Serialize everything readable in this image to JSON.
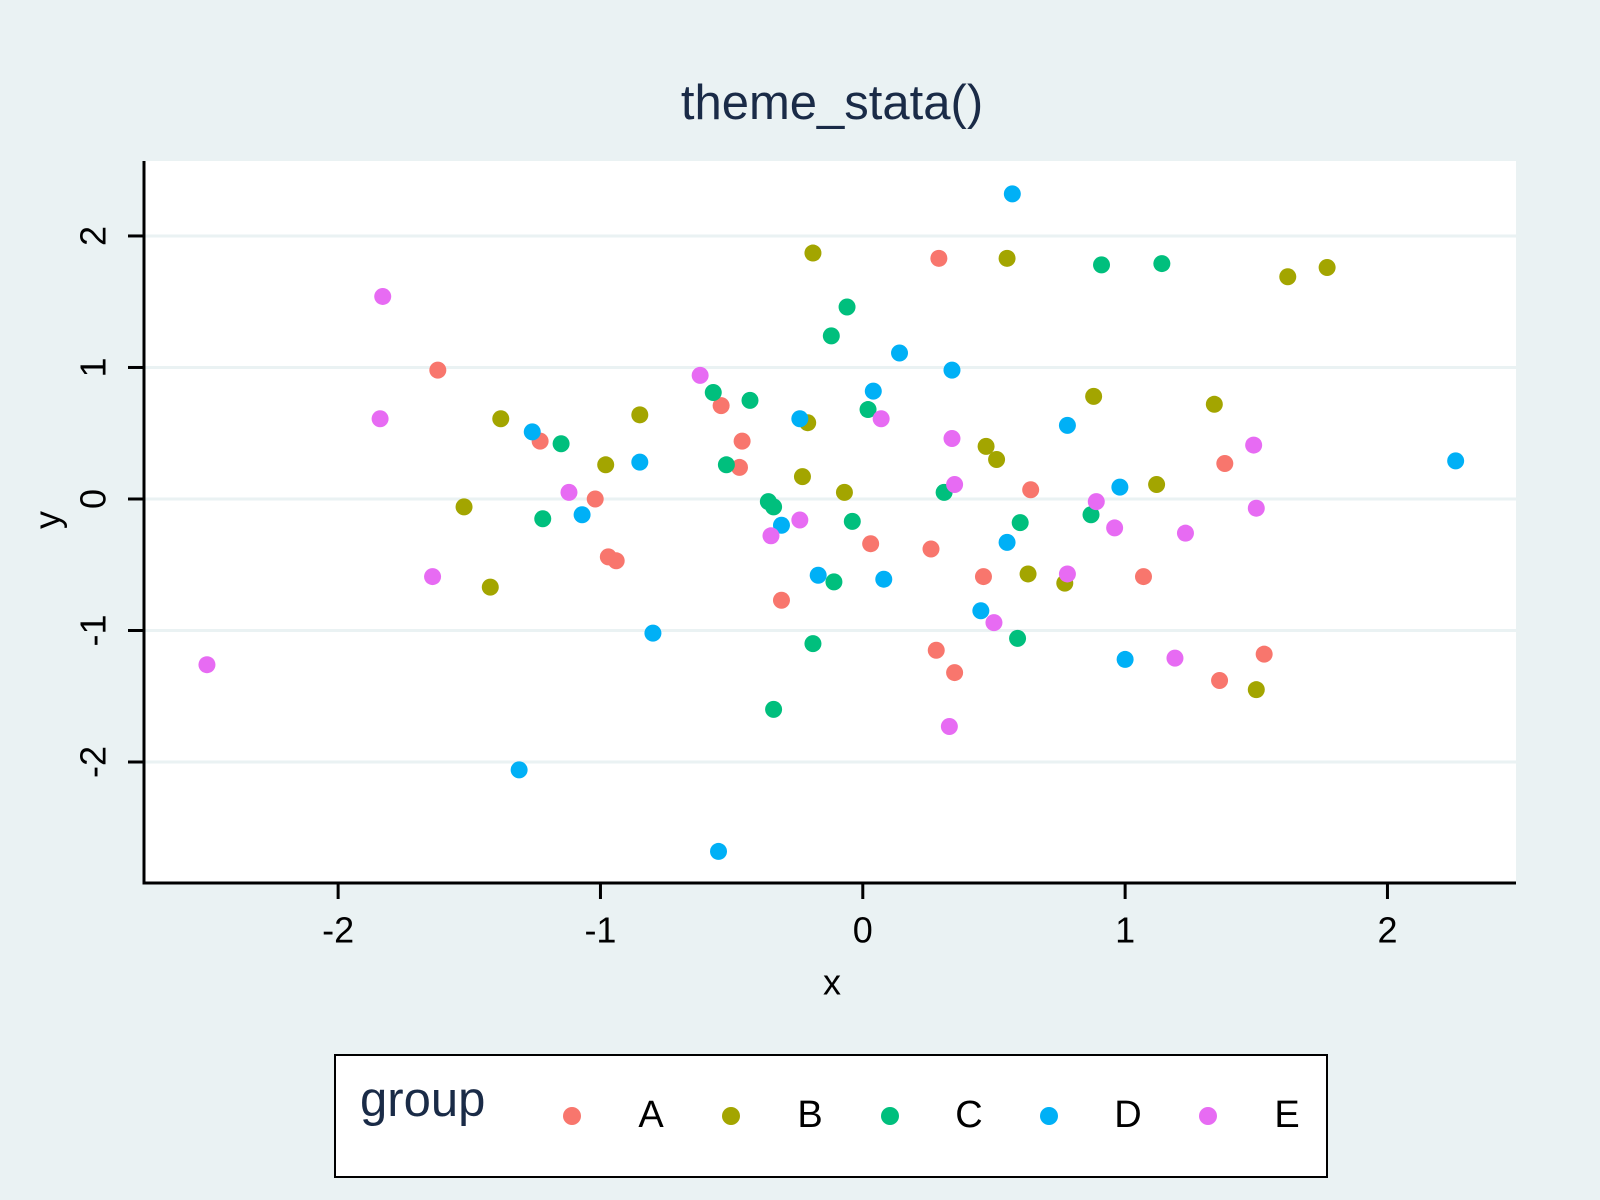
{
  "chart_data": {
    "type": "scatter",
    "title": "theme_stata()",
    "x_label": "x",
    "y_label": "y",
    "legend_title": "group",
    "legend_position": "bottom",
    "grid": true,
    "xlim": [
      -2.74,
      2.49
    ],
    "ylim": [
      -2.92,
      2.57
    ],
    "xticks": [
      -2,
      -1,
      0,
      1,
      2
    ],
    "yticks": [
      -2,
      -1,
      0,
      1,
      2
    ],
    "series": [
      {
        "name": "A",
        "color": "#F8766D",
        "x": [
          0.29,
          -1.62,
          -0.54,
          -0.46,
          -1.23,
          -0.47,
          1.38,
          0.64,
          -1.02,
          -0.97,
          -0.94,
          0.03,
          0.26,
          0.46,
          1.07,
          -0.31,
          0.28,
          0.35,
          1.53,
          1.36
        ],
        "values": [
          1.83,
          0.98,
          0.71,
          0.44,
          0.44,
          0.24,
          0.27,
          0.07,
          0.0,
          -0.44,
          -0.47,
          -0.34,
          -0.38,
          -0.59,
          -0.59,
          -0.77,
          -1.15,
          -1.32,
          -1.18,
          -1.38
        ]
      },
      {
        "name": "B",
        "color": "#A3A500",
        "x": [
          -0.19,
          0.55,
          1.62,
          1.77,
          -1.38,
          -0.85,
          0.88,
          1.34,
          -0.21,
          0.47,
          0.51,
          -0.98,
          -0.23,
          1.12,
          -0.07,
          -1.52,
          0.63,
          0.77,
          -1.42,
          1.5
        ],
        "values": [
          1.87,
          1.83,
          1.69,
          1.76,
          0.61,
          0.64,
          0.78,
          0.72,
          0.58,
          0.4,
          0.3,
          0.26,
          0.17,
          0.11,
          0.05,
          -0.06,
          -0.57,
          -0.64,
          -0.67,
          -1.45
        ]
      },
      {
        "name": "C",
        "color": "#00BF7D",
        "x": [
          0.91,
          1.14,
          -0.06,
          -0.12,
          -0.57,
          -0.43,
          0.02,
          -1.15,
          -0.52,
          0.31,
          -0.36,
          -0.34,
          -1.22,
          -0.04,
          0.6,
          0.87,
          -0.11,
          -0.19,
          0.59,
          -0.34
        ],
        "values": [
          1.78,
          1.79,
          1.46,
          1.24,
          0.81,
          0.75,
          0.68,
          0.42,
          0.26,
          0.05,
          -0.02,
          -0.06,
          -0.15,
          -0.17,
          -0.18,
          -0.12,
          -0.63,
          -1.1,
          -1.06,
          -1.6
        ]
      },
      {
        "name": "D",
        "color": "#00B0F6",
        "x": [
          0.57,
          0.14,
          0.34,
          0.04,
          -0.24,
          0.78,
          -1.26,
          -0.85,
          2.26,
          0.98,
          -1.07,
          -0.31,
          0.55,
          -0.17,
          0.08,
          0.45,
          -0.8,
          1.0,
          -1.31,
          -0.55
        ],
        "values": [
          2.32,
          1.11,
          0.98,
          0.82,
          0.61,
          0.56,
          0.51,
          0.28,
          0.29,
          0.09,
          -0.12,
          -0.2,
          -0.33,
          -0.58,
          -0.61,
          -0.85,
          -1.02,
          -1.22,
          -2.06,
          -2.68
        ]
      },
      {
        "name": "E",
        "color": "#E76BF3",
        "x": [
          -1.83,
          -0.62,
          -1.84,
          0.07,
          0.34,
          1.49,
          0.35,
          -1.12,
          0.89,
          -0.24,
          1.5,
          0.96,
          1.23,
          -0.35,
          -1.64,
          0.78,
          0.5,
          1.19,
          0.33,
          -2.5
        ],
        "values": [
          1.54,
          0.94,
          0.61,
          0.61,
          0.46,
          0.41,
          0.11,
          0.05,
          -0.02,
          -0.16,
          -0.07,
          -0.22,
          -0.26,
          -0.28,
          -0.59,
          -0.57,
          -0.94,
          -1.21,
          -1.73,
          -1.26
        ]
      }
    ]
  }
}
